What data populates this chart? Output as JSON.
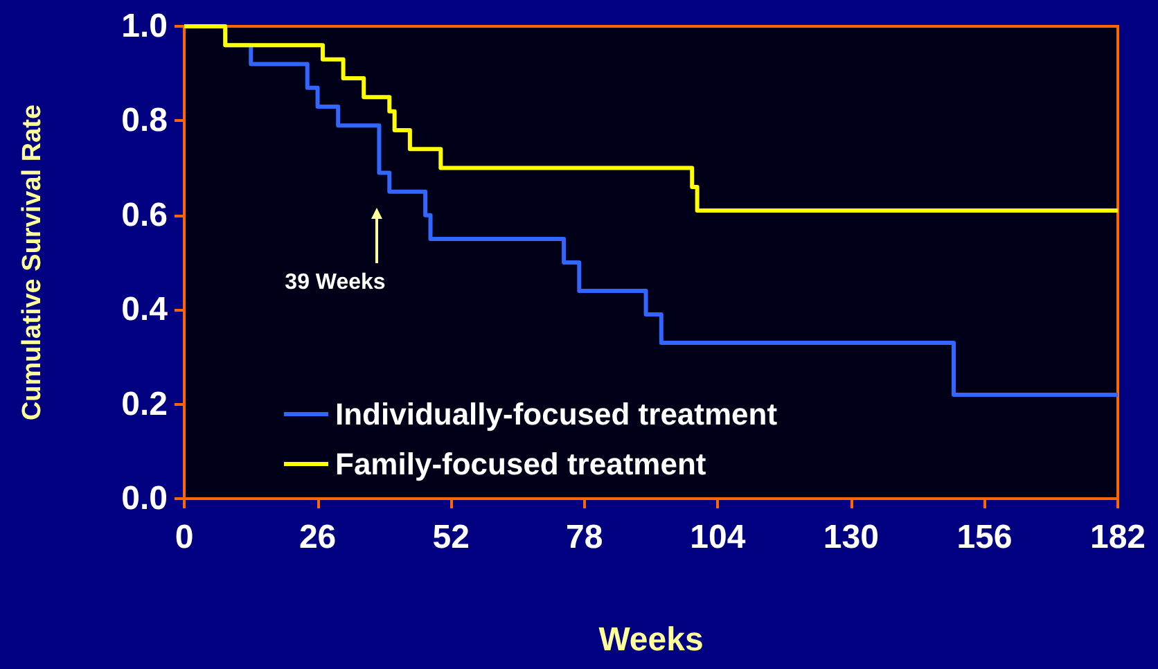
{
  "chart_data": {
    "type": "step",
    "xlabel": "Weeks",
    "ylabel": "Cumulative Survival Rate",
    "xlim": [
      0,
      182
    ],
    "xticks": [
      0,
      26,
      52,
      78,
      104,
      130,
      156,
      182
    ],
    "ylim": [
      0,
      1
    ],
    "yticks": [
      {
        "value": 0,
        "label": "0.0"
      },
      0.2,
      0.4,
      0.6,
      0.8,
      {
        "value": 1,
        "label": "1.0"
      }
    ],
    "grid": false,
    "legend": "bottom left",
    "marker": "none",
    "line_style": "solid",
    "annotations": [
      "39 Weeks"
    ],
    "series": [
      {
        "name": "Individually-focused treatment",
        "color": "#3366ff",
        "x": [
          0,
          8,
          13,
          24,
          26,
          30,
          38,
          40,
          47,
          48,
          74,
          77,
          90,
          93,
          150,
          182
        ],
        "values": [
          1,
          0.96,
          0.92,
          0.87,
          0.83,
          0.79,
          0.69,
          0.65,
          0.6,
          0.55,
          0.5,
          0.44,
          0.39,
          0.33,
          0.22,
          0.22
        ]
      },
      {
        "name": "Family-focused treatment",
        "color": "#ffff00",
        "x": [
          0,
          8,
          27,
          31,
          35,
          40,
          41,
          44,
          50,
          99,
          100,
          182
        ],
        "values": [
          1,
          0.96,
          0.93,
          0.89,
          0.85,
          0.82,
          0.78,
          0.74,
          0.7,
          0.66,
          0.61,
          0.61
        ]
      }
    ]
  }
}
